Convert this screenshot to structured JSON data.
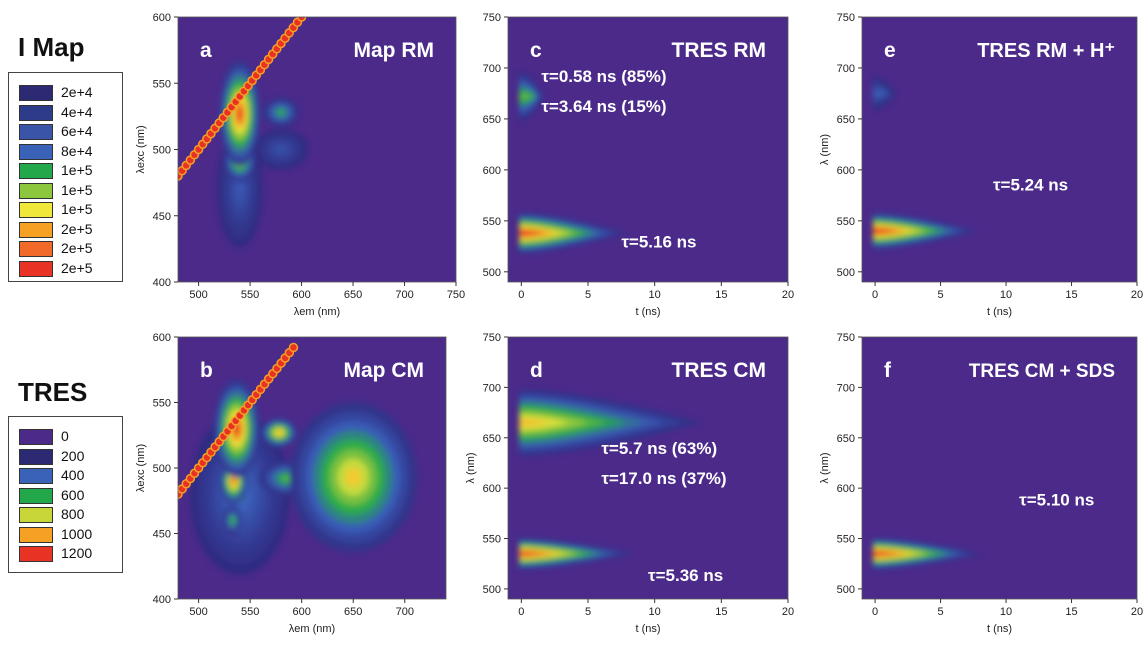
{
  "legends": {
    "imap": {
      "title": "I Map",
      "entries": [
        {
          "label": "2e+4",
          "color": "#2c2a72"
        },
        {
          "label": "4e+4",
          "color": "#2e3a8a"
        },
        {
          "label": "6e+4",
          "color": "#3a55a8"
        },
        {
          "label": "8e+4",
          "color": "#3a63b8"
        },
        {
          "label": "1e+5",
          "color": "#22a84a"
        },
        {
          "label": "1e+5",
          "color": "#8bc63e"
        },
        {
          "label": "1e+5",
          "color": "#efe83a"
        },
        {
          "label": "2e+5",
          "color": "#f6a024"
        },
        {
          "label": "2e+5",
          "color": "#f26a2a"
        },
        {
          "label": "2e+5",
          "color": "#e83224"
        }
      ]
    },
    "tres": {
      "title": "TRES",
      "entries": [
        {
          "label": "0",
          "color": "#4b2a8a"
        },
        {
          "label": "200",
          "color": "#2c2a72"
        },
        {
          "label": "400",
          "color": "#3a63b8"
        },
        {
          "label": "600",
          "color": "#22a84a"
        },
        {
          "label": "800",
          "color": "#c9d63a"
        },
        {
          "label": "1000",
          "color": "#f6a024"
        },
        {
          "label": "1200",
          "color": "#e83224"
        }
      ]
    }
  },
  "chart_data": [
    {
      "id": "a",
      "type": "heatmap",
      "letter": "a",
      "title": "Map RM",
      "xlabel": "λem (nm)",
      "ylabel": "λexc (nm)",
      "xlim": [
        480,
        750
      ],
      "ylim": [
        400,
        600
      ],
      "xticks": [
        500,
        550,
        600,
        650,
        700,
        750
      ],
      "yticks": [
        400,
        450,
        500,
        550,
        600
      ],
      "annotations": [],
      "scatter_line": {
        "x_start": 480,
        "x_end": 600
      },
      "blobs": [
        {
          "x": 540,
          "y": 527,
          "sx": 9,
          "sy": 18,
          "v": 1.0
        },
        {
          "x": 540,
          "y": 493,
          "sx": 7,
          "sy": 8,
          "v": 0.8
        },
        {
          "x": 580,
          "y": 528,
          "sx": 8,
          "sy": 5,
          "v": 0.5
        },
        {
          "x": 580,
          "y": 500,
          "sx": 12,
          "sy": 7,
          "v": 0.25
        },
        {
          "x": 540,
          "y": 470,
          "sx": 10,
          "sy": 20,
          "v": 0.28
        }
      ]
    },
    {
      "id": "b",
      "type": "heatmap",
      "letter": "b",
      "title": "Map CM",
      "xlabel": "λem (nm)",
      "ylabel": "λexc (nm)",
      "xlim": [
        480,
        740
      ],
      "ylim": [
        400,
        600
      ],
      "xticks": [
        500,
        550,
        600,
        650,
        700
      ],
      "yticks": [
        400,
        450,
        500,
        550,
        600
      ],
      "annotations": [],
      "scatter_line": {
        "x_start": 480,
        "x_end": 595
      },
      "blobs": [
        {
          "x": 537,
          "y": 530,
          "sx": 10,
          "sy": 17,
          "v": 1.0
        },
        {
          "x": 534,
          "y": 490,
          "sx": 6,
          "sy": 8,
          "v": 0.95
        },
        {
          "x": 578,
          "y": 527,
          "sx": 8,
          "sy": 5,
          "v": 0.85
        },
        {
          "x": 650,
          "y": 493,
          "sx": 28,
          "sy": 26,
          "v": 0.78
        },
        {
          "x": 585,
          "y": 492,
          "sx": 12,
          "sy": 6,
          "v": 0.55
        },
        {
          "x": 540,
          "y": 480,
          "sx": 22,
          "sy": 28,
          "v": 0.35
        },
        {
          "x": 533,
          "y": 460,
          "sx": 4,
          "sy": 5,
          "v": 0.55
        }
      ]
    },
    {
      "id": "c",
      "type": "heatmap",
      "letter": "c",
      "title": "TRES RM",
      "xlabel": "t (ns)",
      "ylabel": "",
      "xlim": [
        -1,
        20
      ],
      "ylim": [
        490,
        750
      ],
      "xticks": [
        0,
        5,
        10,
        15,
        20
      ],
      "yticks": [
        500,
        550,
        600,
        650,
        700,
        750
      ],
      "annotations": [
        {
          "text": "τ=0.58 ns (85%)",
          "x": 1.5,
          "y": 686
        },
        {
          "text": "τ=3.64 ns (15%)",
          "x": 1.5,
          "y": 657
        },
        {
          "text": "τ=5.16 ns",
          "x": 7.5,
          "y": 524
        }
      ],
      "bands": [
        {
          "y": 538,
          "sy": 18,
          "tau": 2.2,
          "v": 1.0
        },
        {
          "y": 672,
          "sy": 22,
          "tau": 0.3,
          "v": 0.55
        }
      ]
    },
    {
      "id": "d",
      "type": "heatmap",
      "letter": "d",
      "title": "TRES CM",
      "xlabel": "t (ns)",
      "ylabel": "λ (nm)",
      "xlim": [
        -1,
        20
      ],
      "ylim": [
        490,
        750
      ],
      "xticks": [
        0,
        5,
        10,
        15,
        20
      ],
      "yticks": [
        500,
        550,
        600,
        650,
        700,
        750
      ],
      "annotations": [
        {
          "text": "τ=5.7 ns (63%)",
          "x": 6,
          "y": 634
        },
        {
          "text": "τ=17.0 ns (37%)",
          "x": 6,
          "y": 604
        },
        {
          "text": "τ=5.36 ns",
          "x": 9.5,
          "y": 508
        }
      ],
      "bands": [
        {
          "y": 535,
          "sy": 14,
          "tau": 2.4,
          "v": 1.0
        },
        {
          "y": 665,
          "sy": 30,
          "tau": 4.0,
          "v": 0.8
        }
      ]
    },
    {
      "id": "e",
      "type": "heatmap",
      "letter": "e",
      "title": "TRES RM + H⁺",
      "xlabel": "t (ns)",
      "ylabel": "λ (nm)",
      "xlim": [
        -1,
        20
      ],
      "ylim": [
        490,
        750
      ],
      "xticks": [
        0,
        5,
        10,
        15,
        20
      ],
      "yticks": [
        500,
        550,
        600,
        650,
        700,
        750
      ],
      "annotations": [
        {
          "text": "τ=5.24 ns",
          "x": 9,
          "y": 580
        }
      ],
      "bands": [
        {
          "y": 540,
          "sy": 16,
          "tau": 2.2,
          "v": 1.0
        },
        {
          "y": 675,
          "sy": 15,
          "tau": 0.25,
          "v": 0.3
        }
      ]
    },
    {
      "id": "f",
      "type": "heatmap",
      "letter": "f",
      "title": "TRES CM + SDS",
      "xlabel": "t (ns)",
      "ylabel": "λ (nm)",
      "xlim": [
        -1,
        20
      ],
      "ylim": [
        490,
        750
      ],
      "xticks": [
        0,
        5,
        10,
        15,
        20
      ],
      "yticks": [
        500,
        550,
        600,
        650,
        700,
        750
      ],
      "annotations": [
        {
          "text": "τ=5.10 ns",
          "x": 11,
          "y": 583
        }
      ],
      "bands": [
        {
          "y": 535,
          "sy": 14,
          "tau": 2.3,
          "v": 1.0
        }
      ]
    }
  ]
}
